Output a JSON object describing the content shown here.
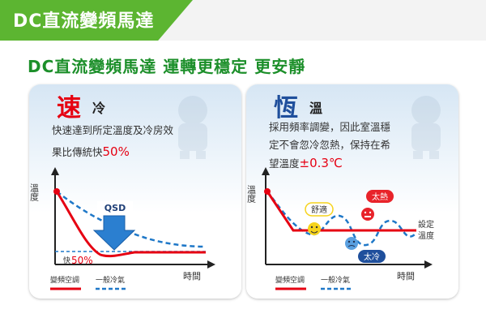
{
  "header": {
    "title": "DC直流變頻馬達"
  },
  "subtitle": "DC直流變頻馬達 運轉更穩定 更安靜",
  "panel1": {
    "title": "速",
    "title_sub": "冷",
    "desc_line1": "快速達到所定溫度及冷房效",
    "desc_line2_prefix": "果比傳統快",
    "desc_line2_highlight": "50%",
    "ylabel": "溫度",
    "xlabel": "時間",
    "badge": "QSD",
    "fast_prefix": "快",
    "fast_value": "50%",
    "legend_inverter": "變頻空調",
    "legend_normal": "一般冷氣"
  },
  "panel2": {
    "title": "恆",
    "title_sub": "溫",
    "desc_line1": "採用頻率調變，因此室溫穩",
    "desc_line2": "定不會忽冷忽熱，保持在希",
    "desc_line3_prefix": "望溫度",
    "desc_line3_highlight": "±0.3℃",
    "ylabel": "溫度",
    "xlabel": "時間",
    "setpoint_line1": "設定",
    "setpoint_line2": "溫度",
    "bubble_comfortable": "舒適",
    "bubble_hot": "太熱",
    "bubble_cold": "太冷",
    "legend_inverter": "變頻空調",
    "legend_normal": "一般冷氣"
  },
  "colors": {
    "brand_green": "#5cb531",
    "subtitle_green": "#1c8f2a",
    "inverter_red": "#e60012",
    "normal_blue": "#1f78c8",
    "arrow_blue": "#2b7fd0",
    "hot_bubble": "#e8232a",
    "cold_bubble": "#1f4f9c",
    "comfort_bubble": "#f6d31b"
  }
}
